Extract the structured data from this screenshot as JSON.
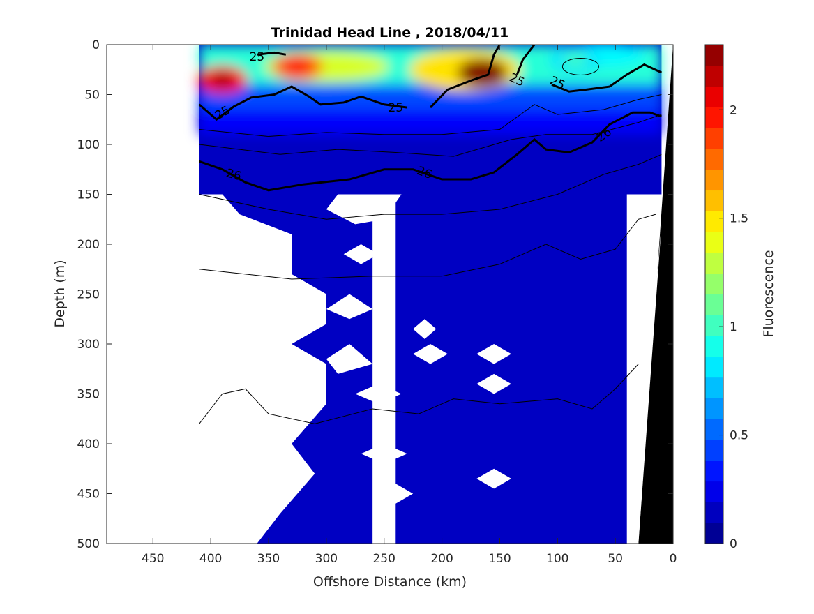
{
  "chart_data": {
    "type": "heatmap",
    "title": "Trinidad Head Line , 2018/04/11",
    "xlabel": "Offshore Distance (km)",
    "ylabel": "Depth (m)",
    "xlim": [
      490,
      0
    ],
    "ylim": [
      0,
      500
    ],
    "x_reversed": true,
    "y_reversed": true,
    "x_ticks": [
      450,
      400,
      350,
      300,
      250,
      200,
      150,
      100,
      50,
      0
    ],
    "y_ticks": [
      0,
      50,
      100,
      150,
      200,
      250,
      300,
      350,
      400,
      450,
      500
    ],
    "colorbar": {
      "label": "Fluorescence",
      "range": [
        0,
        2.3
      ],
      "ticks": [
        0,
        0.5,
        1,
        1.5,
        2
      ],
      "colormap": "jet",
      "levels": 24
    },
    "data_extent_km": [
      410,
      10
    ],
    "high_fluorescence_patches": [
      {
        "x": 390,
        "depth": 35,
        "value": 2.0
      },
      {
        "x": 325,
        "depth": 22,
        "value": 1.8
      },
      {
        "x": 165,
        "depth": 28,
        "value": 2.3
      },
      {
        "x": 85,
        "depth": 15,
        "value": 0.8
      }
    ],
    "density_contours": [
      {
        "label": "25",
        "path": [
          [
            410,
            60
          ],
          [
            395,
            75
          ],
          [
            380,
            62
          ],
          [
            365,
            53
          ],
          [
            345,
            50
          ],
          [
            330,
            42
          ],
          [
            315,
            52
          ],
          [
            305,
            60
          ],
          [
            285,
            58
          ],
          [
            270,
            52
          ],
          [
            250,
            60
          ],
          [
            230,
            63
          ]
        ]
      },
      {
        "label": "25",
        "path": [
          [
            210,
            63
          ],
          [
            195,
            45
          ],
          [
            175,
            36
          ],
          [
            160,
            30
          ],
          [
            155,
            10
          ],
          [
            150,
            0
          ]
        ]
      },
      {
        "label": "25",
        "path": [
          [
            135,
            30
          ],
          [
            130,
            15
          ],
          [
            120,
            0
          ]
        ]
      },
      {
        "label": "25",
        "path": [
          [
            360,
            10
          ],
          [
            345,
            8
          ],
          [
            335,
            10
          ]
        ]
      },
      {
        "label": "25",
        "path": [
          [
            105,
            40
          ],
          [
            90,
            47
          ],
          [
            75,
            45
          ],
          [
            55,
            42
          ],
          [
            40,
            30
          ],
          [
            25,
            20
          ],
          [
            10,
            28
          ]
        ]
      },
      {
        "label": "26",
        "path": [
          [
            410,
            117
          ],
          [
            390,
            125
          ],
          [
            370,
            138
          ],
          [
            350,
            146
          ],
          [
            320,
            140
          ],
          [
            280,
            135
          ],
          [
            250,
            125
          ],
          [
            225,
            125
          ],
          [
            200,
            135
          ],
          [
            175,
            135
          ],
          [
            155,
            128
          ],
          [
            135,
            110
          ],
          [
            120,
            95
          ],
          [
            110,
            105
          ],
          [
            90,
            108
          ],
          [
            70,
            98
          ],
          [
            55,
            80
          ],
          [
            35,
            68
          ],
          [
            20,
            68
          ],
          [
            10,
            72
          ]
        ]
      }
    ]
  }
}
